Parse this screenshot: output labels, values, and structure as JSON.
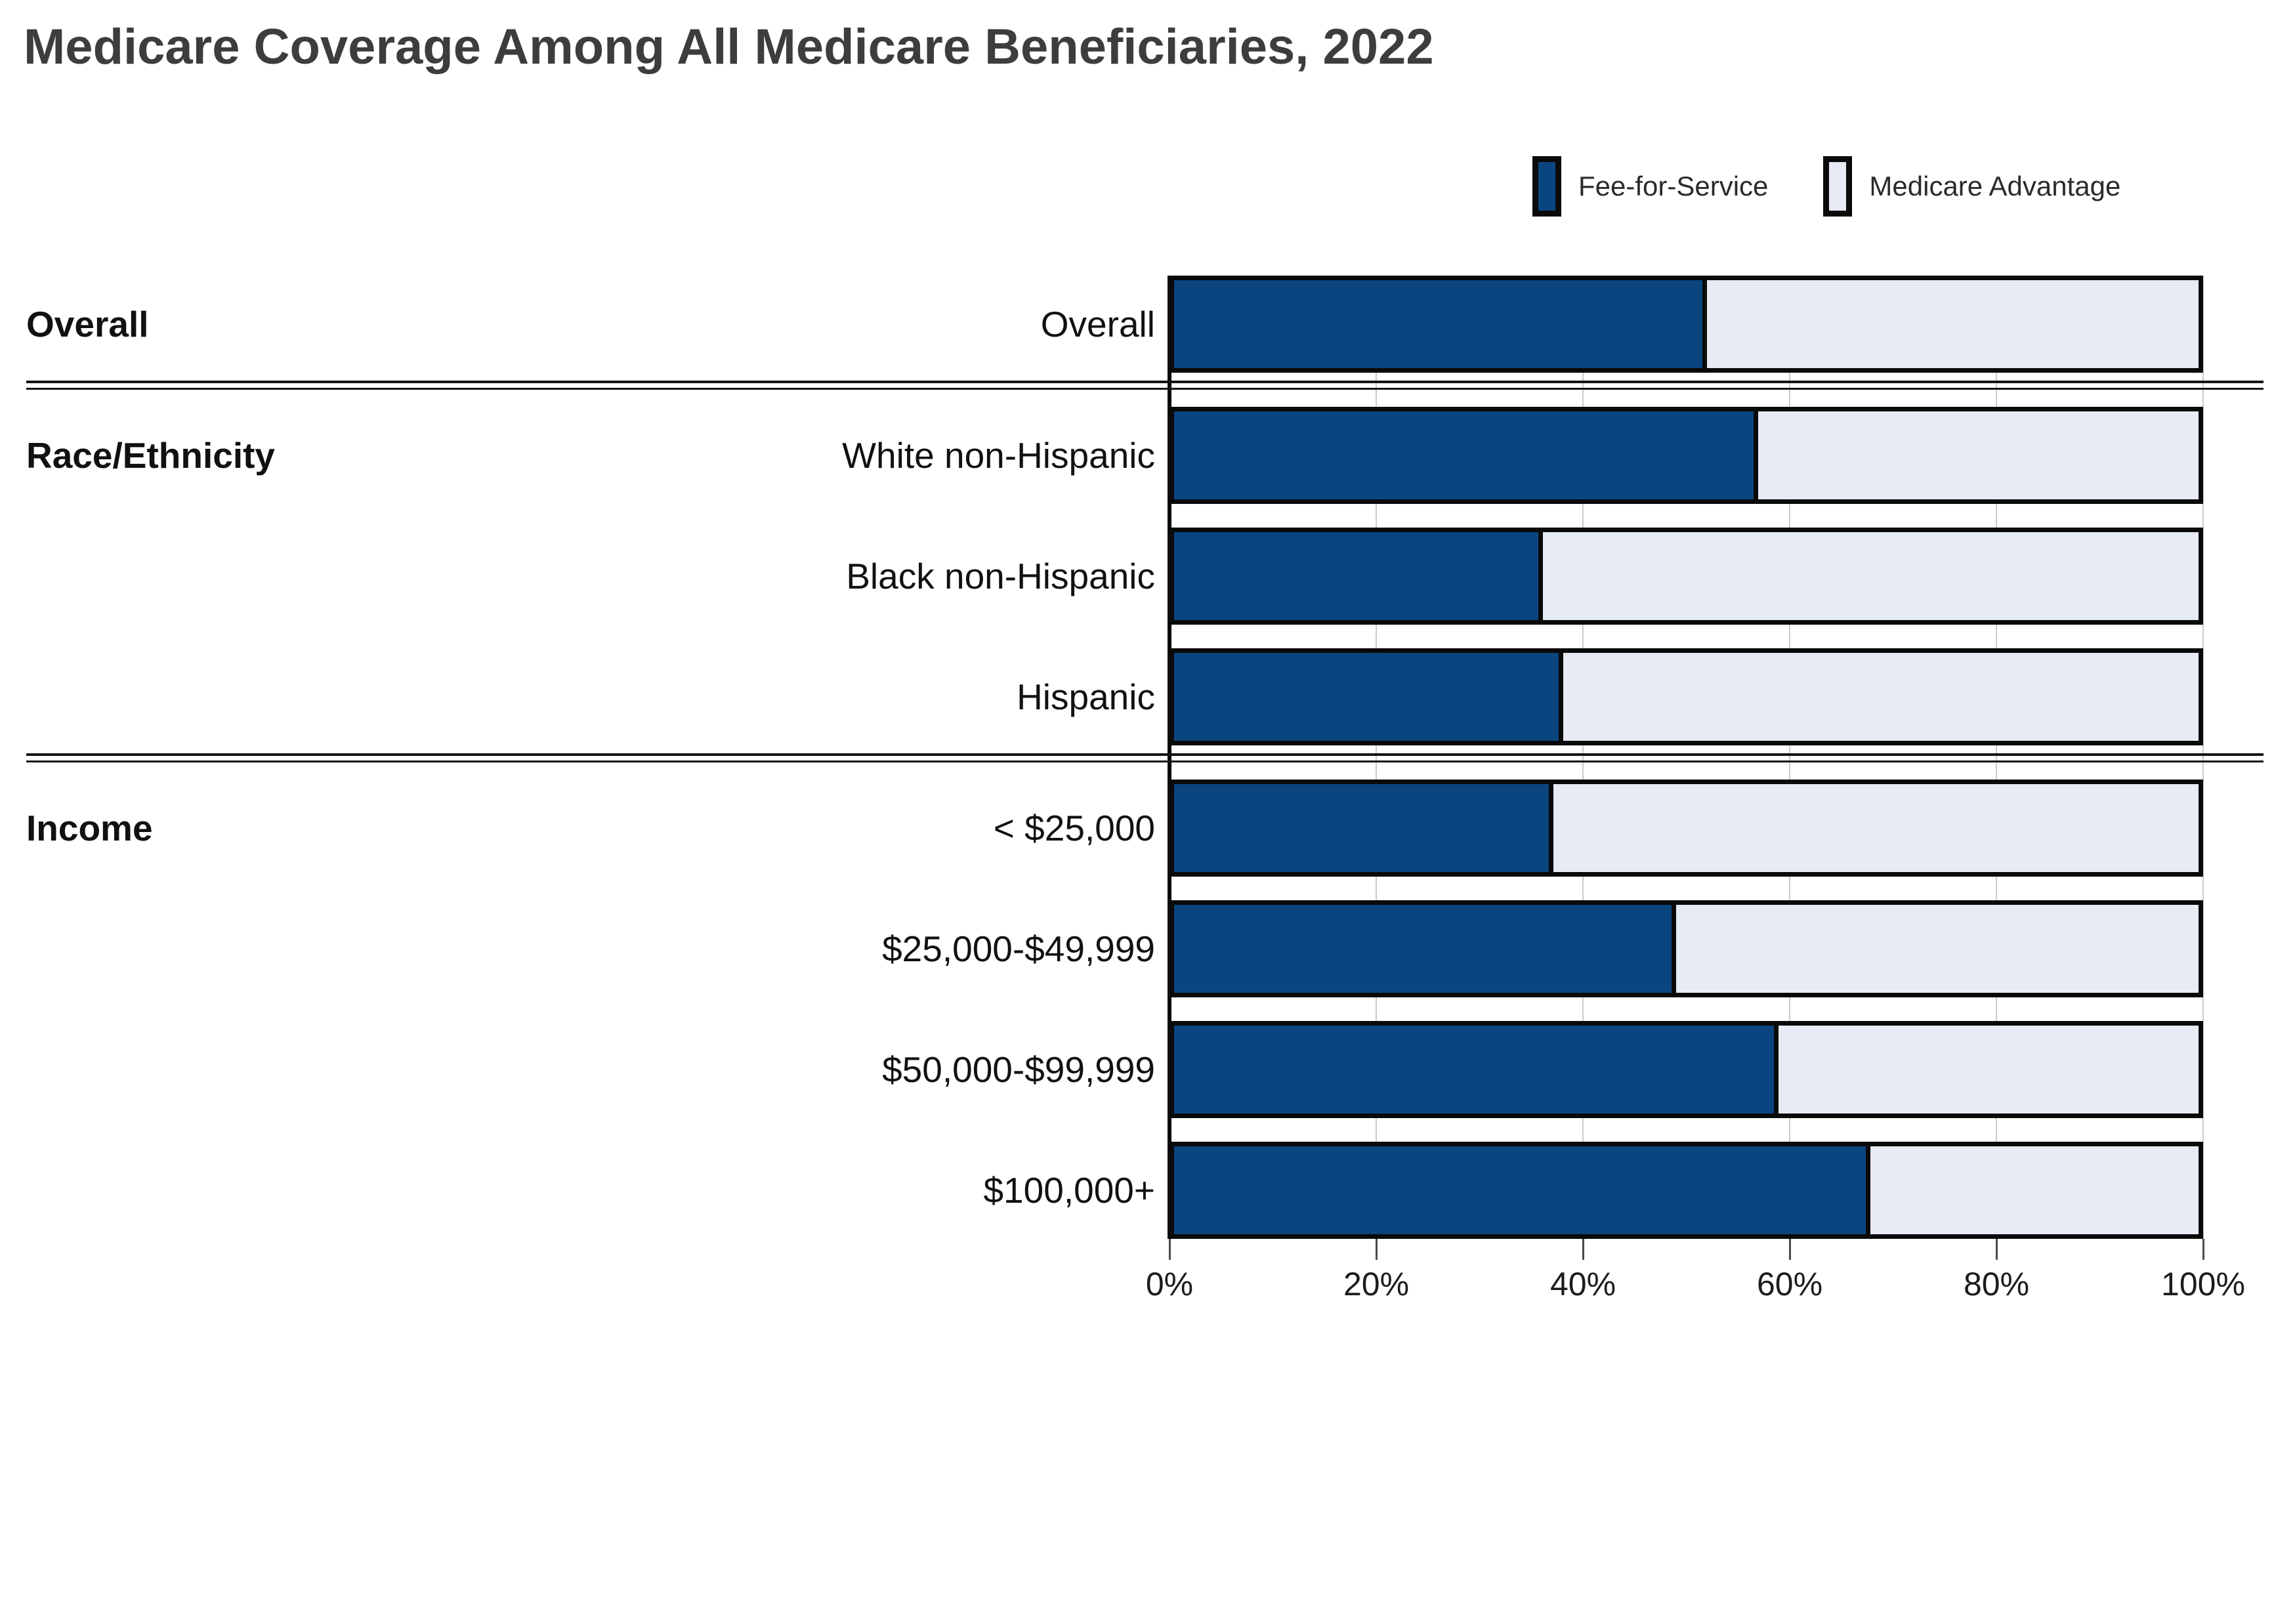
{
  "title": "Medicare Coverage Among All Medicare Beneficiaries, 2022",
  "legend": {
    "items": [
      {
        "label": "Fee-for-Service",
        "color": "#0b4580"
      },
      {
        "label": "Medicare Advantage",
        "color": "#e7ebf4"
      }
    ]
  },
  "colors": {
    "fee_for_service": "#0b4580",
    "medicare_advantage": "#e7ebf4",
    "bar_border": "#0a0a0a",
    "gridline": "#cbcbcb",
    "title_text": "#3d3d3d",
    "label_text": "#111111"
  },
  "chart_data": {
    "type": "bar",
    "orientation": "horizontal-stacked",
    "title": "Medicare Coverage Among All Medicare Beneficiaries, 2022",
    "xlabel": "",
    "ylabel": "",
    "xlim": [
      0,
      100
    ],
    "x_tick_labels": [
      "0%",
      "20%",
      "40%",
      "60%",
      "80%",
      "100%"
    ],
    "x_tick_values": [
      0,
      20,
      40,
      60,
      80,
      100
    ],
    "grid": true,
    "legend_position": "top-right",
    "series_names": [
      "Fee-for-Service",
      "Medicare Advantage"
    ],
    "sections": [
      {
        "label": "Overall",
        "rows": [
          {
            "category": "Overall",
            "fee_for_service": 52,
            "medicare_advantage": 48
          }
        ]
      },
      {
        "label": "Race/Ethnicity",
        "rows": [
          {
            "category": "White non-Hispanic",
            "fee_for_service": 57,
            "medicare_advantage": 43
          },
          {
            "category": "Black non-Hispanic",
            "fee_for_service": 36,
            "medicare_advantage": 64
          },
          {
            "category": "Hispanic",
            "fee_for_service": 38,
            "medicare_advantage": 62
          }
        ]
      },
      {
        "label": "Income",
        "rows": [
          {
            "category": "< $25,000",
            "fee_for_service": 37,
            "medicare_advantage": 63
          },
          {
            "category": "$25,000-$49,999",
            "fee_for_service": 49,
            "medicare_advantage": 51
          },
          {
            "category": "$50,000-$99,999",
            "fee_for_service": 59,
            "medicare_advantage": 41
          },
          {
            "category": "$100,000+",
            "fee_for_service": 68,
            "medicare_advantage": 32
          }
        ]
      }
    ]
  }
}
